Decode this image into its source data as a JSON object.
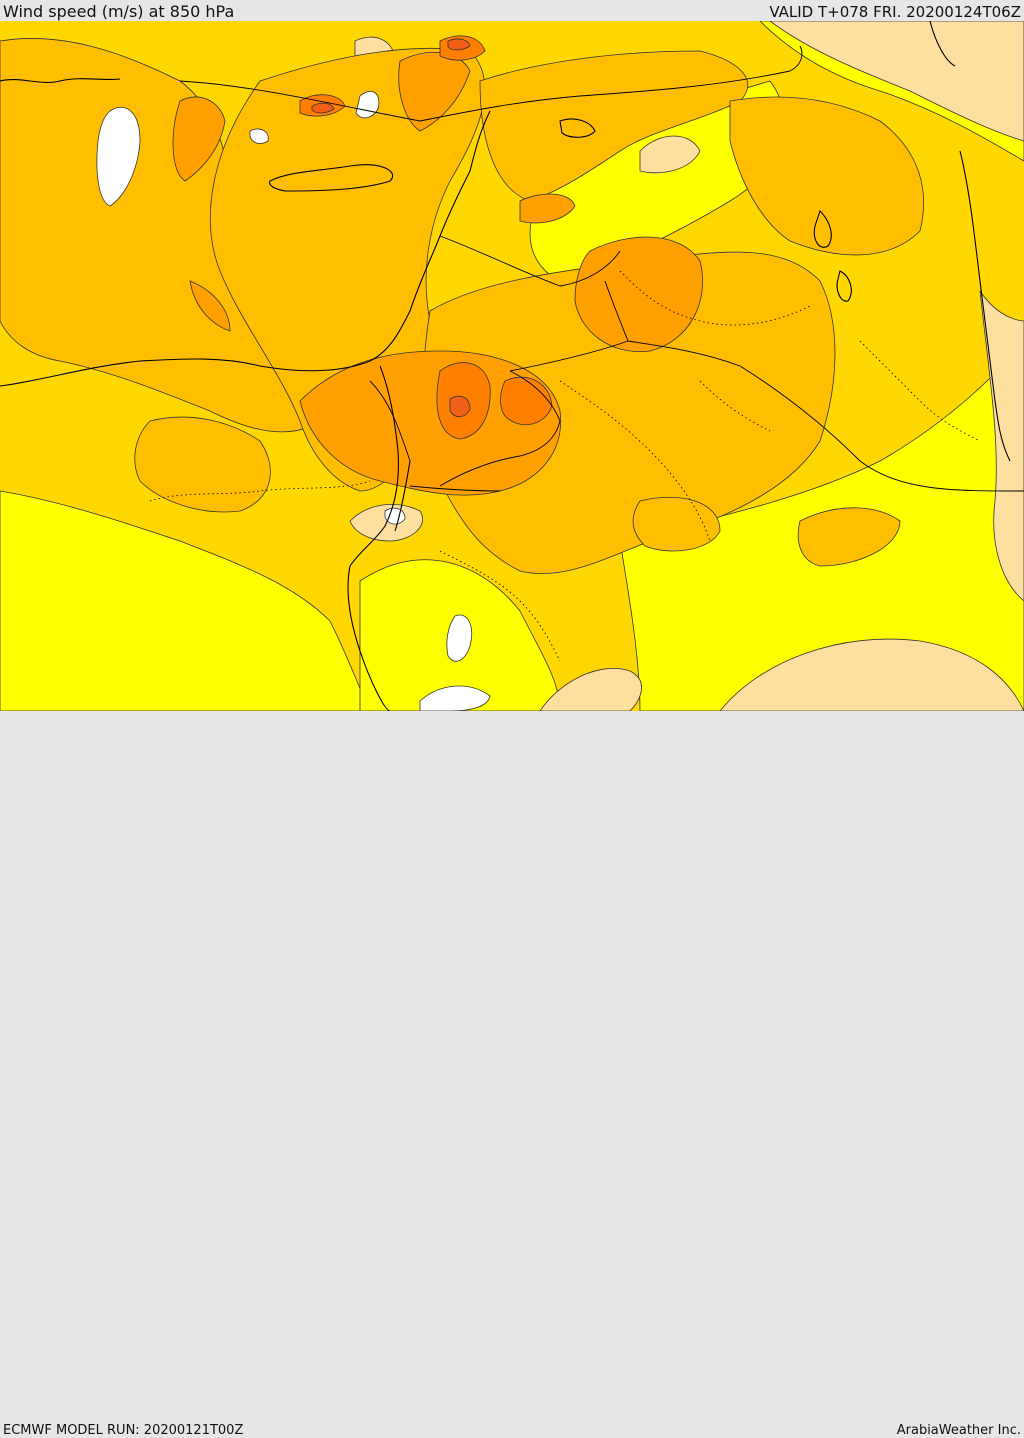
{
  "header": {
    "title": "Wind speed (m/s) at 850 hPa",
    "valid": "VALID T+078 FRI. 20200124T06Z"
  },
  "footer": {
    "model_run": "ECMWF MODEL RUN: 20200121T00Z",
    "credit": "ArabiaWeather Inc."
  },
  "colors": {
    "calm": "#ffffff",
    "light": "#ffdfa0",
    "yellow": "#ffff00",
    "gold": "#ffd700",
    "amber": "#ffbf00",
    "orange": "#ffa000",
    "dark_orange": "#ff8000",
    "red_orange": "#f26018",
    "contour": "#333333"
  }
}
